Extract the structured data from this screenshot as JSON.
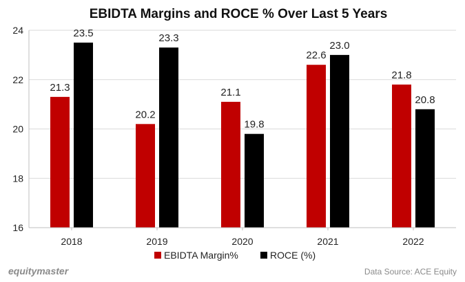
{
  "chart_data": {
    "type": "bar",
    "title": "EBIDTA Margins and ROCE % Over Last 5 Years",
    "categories": [
      "2018",
      "2019",
      "2020",
      "2021",
      "2022"
    ],
    "series": [
      {
        "name": "EBIDTA Margin%",
        "values": [
          21.3,
          20.2,
          21.1,
          22.6,
          21.8
        ],
        "color": "#c00000",
        "labels": [
          "21.3",
          "20.2",
          "21.1",
          "22.6",
          "21.8"
        ]
      },
      {
        "name": "ROCE (%)",
        "values": [
          23.5,
          23.3,
          19.8,
          23.0,
          20.8
        ],
        "color": "#000000",
        "labels": [
          "23.5",
          "23.3",
          "19.8",
          "23.0",
          "20.8"
        ]
      }
    ],
    "ylim": [
      16,
      24
    ],
    "yticks": [
      "16",
      "18",
      "20",
      "22",
      "24"
    ],
    "grid": true,
    "legend_position": "bottom"
  },
  "footer": {
    "brand": "equitymaster",
    "source": "Data Source: ACE Equity"
  }
}
